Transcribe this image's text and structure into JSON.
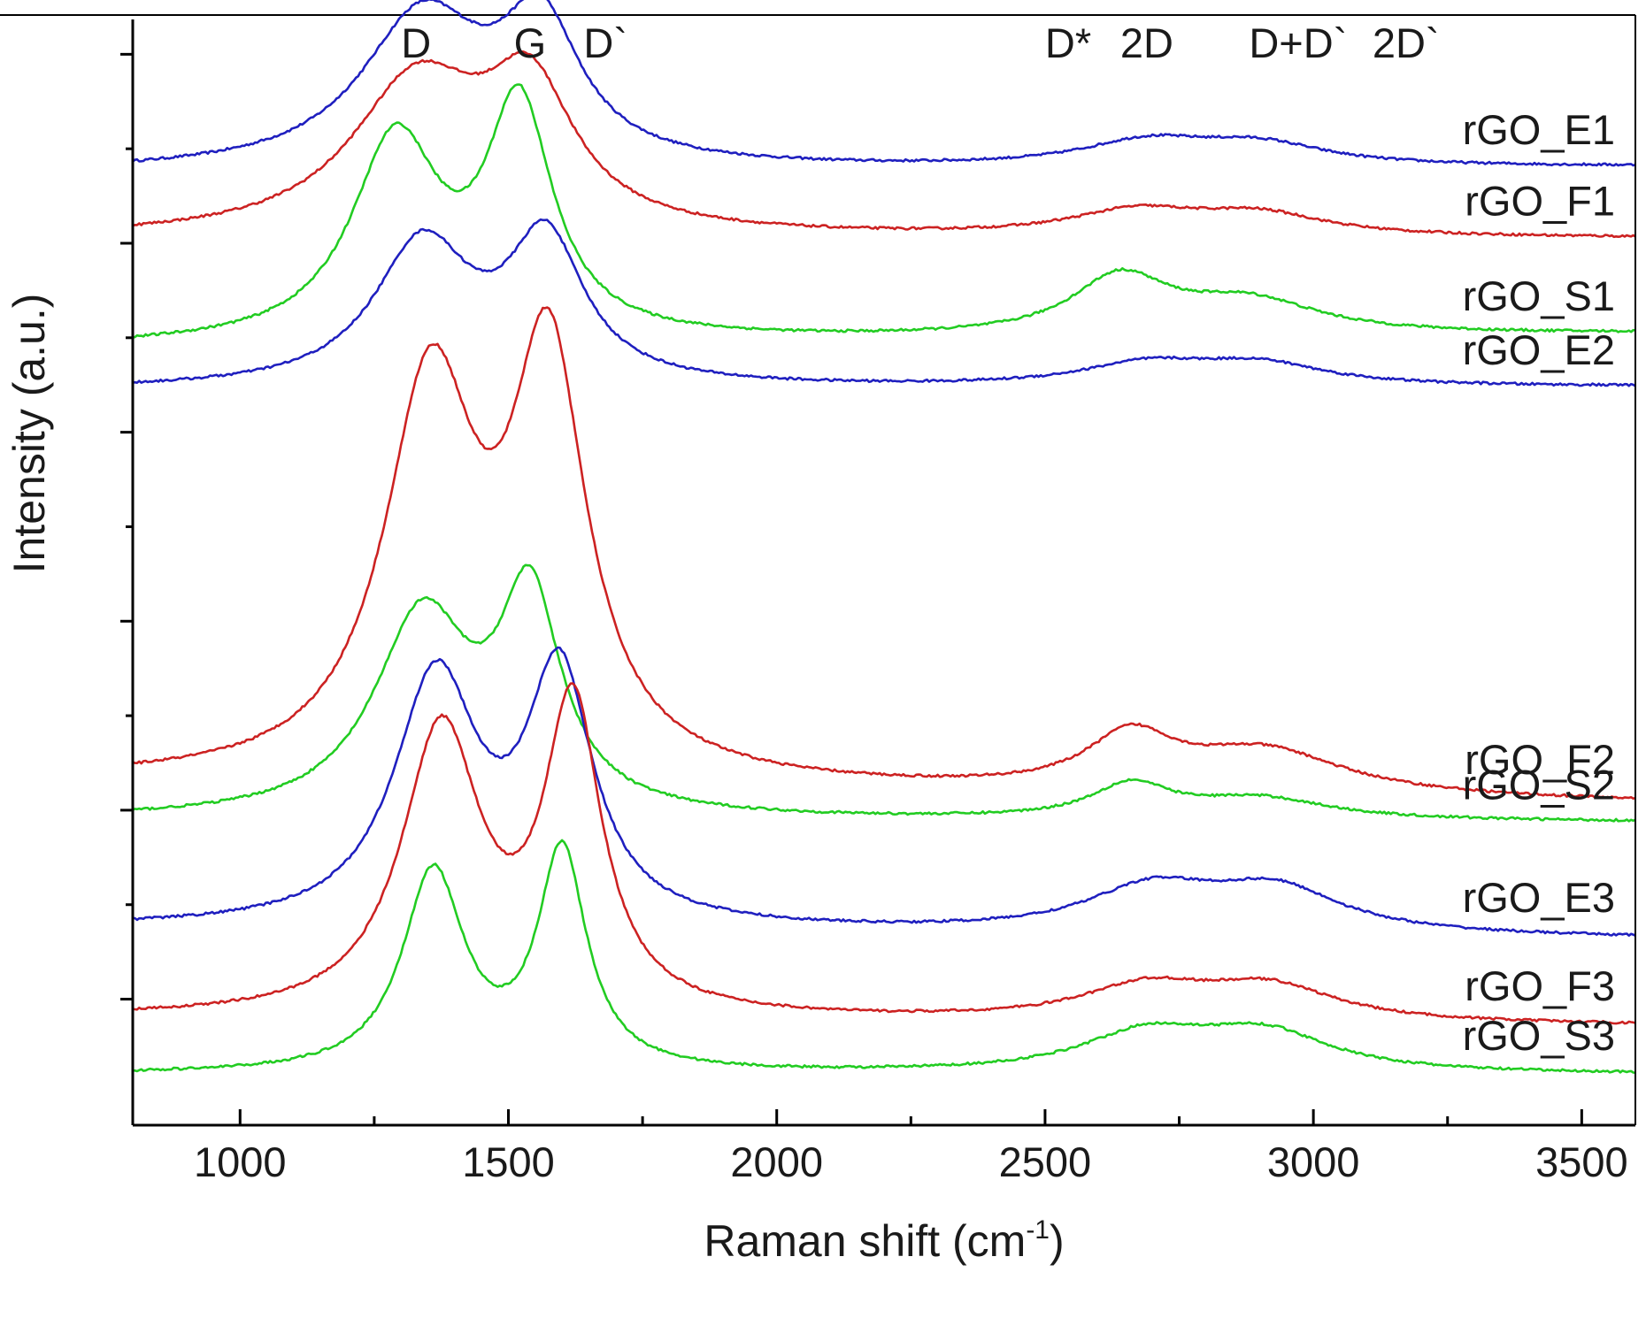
{
  "chart_data": {
    "type": "line",
    "title": "",
    "xlabel": "Raman shift (cm",
    "xlabel_sup": "-1",
    "xlabel_close": ")",
    "ylabel": "Intensity (a.u.)",
    "xlim": [
      800,
      3600
    ],
    "ylim": [
      0,
      11
    ],
    "grid": false,
    "x_ticks": [
      1000,
      1500,
      2000,
      2500,
      3000,
      3500
    ],
    "x_tick_labels": [
      "1000",
      "1500",
      "2000",
      "2500",
      "3000",
      "3500"
    ],
    "x_minor_ticks": [
      1250,
      1750,
      2250,
      2750,
      3250
    ],
    "y_ticks": [
      10.8,
      9.8,
      8.8,
      7.8,
      6.8,
      5.8,
      4.8,
      3.8,
      2.8,
      1.8,
      0.8
    ],
    "peak_labels": [
      {
        "text": "D",
        "x": 1300
      },
      {
        "text": "G",
        "x": 1510
      },
      {
        "text": "D`",
        "x": 1640
      },
      {
        "text": "D*",
        "x": 2500
      },
      {
        "text": "2D",
        "x": 2640
      },
      {
        "text": "D+D`",
        "x": 2880
      },
      {
        "text": "2D`",
        "x": 3110
      }
    ],
    "series": [
      {
        "name": "rGO_E1",
        "color": "#1f1fbf",
        "baseline": 9.55,
        "peaks": [
          [
            1340,
            1.6,
            140
          ],
          [
            1560,
            1.4,
            90
          ],
          [
            2690,
            0.25,
            150
          ],
          [
            2900,
            0.22,
            150
          ]
        ],
        "slope": 2e-05
      },
      {
        "name": "rGO_F1",
        "color": "#cc2222",
        "baseline": 8.85,
        "peaks": [
          [
            1330,
            1.6,
            150
          ],
          [
            1540,
            1.4,
            100
          ],
          [
            2670,
            0.25,
            150
          ],
          [
            2900,
            0.22,
            150
          ]
        ],
        "slope": 0.0
      },
      {
        "name": "rGO_S1",
        "color": "#22cc22",
        "baseline": 7.7,
        "peaks": [
          [
            1290,
            2.1,
            100
          ],
          [
            1520,
            2.4,
            75
          ],
          [
            2640,
            0.6,
            110
          ],
          [
            2880,
            0.35,
            160
          ]
        ],
        "slope": 5e-05
      },
      {
        "name": "rGO_E2",
        "color": "#1f1fbf",
        "baseline": 7.25,
        "peaks": [
          [
            1340,
            1.5,
            110
          ],
          [
            1570,
            1.5,
            85
          ],
          [
            2690,
            0.22,
            150
          ],
          [
            2900,
            0.22,
            150
          ]
        ],
        "slope": 1e-05
      },
      {
        "name": "rGO_F2",
        "color": "#cc2222",
        "baseline": 3.1,
        "peaks": [
          [
            1355,
            4.1,
            105
          ],
          [
            1575,
            4.3,
            85
          ],
          [
            2660,
            0.55,
            100
          ],
          [
            2910,
            0.45,
            180
          ]
        ],
        "slope": -8e-05
      },
      {
        "name": "rGO_S2",
        "color": "#22cc22",
        "baseline": 2.7,
        "peaks": [
          [
            1340,
            2.1,
            110
          ],
          [
            1540,
            2.2,
            70
          ],
          [
            2660,
            0.35,
            90
          ],
          [
            2900,
            0.22,
            160
          ]
        ],
        "slope": -1e-05
      },
      {
        "name": "rGO_E3",
        "color": "#1f1fbf",
        "baseline": 1.55,
        "peaks": [
          [
            1365,
            2.6,
            95
          ],
          [
            1595,
            2.6,
            75
          ],
          [
            2700,
            0.45,
            150
          ],
          [
            2930,
            0.45,
            150
          ]
        ],
        "slope": -4e-05
      },
      {
        "name": "rGO_F3",
        "color": "#cc2222",
        "baseline": 0.6,
        "peaks": [
          [
            1375,
            3.0,
            90
          ],
          [
            1620,
            3.2,
            65
          ],
          [
            2690,
            0.35,
            150
          ],
          [
            2920,
            0.35,
            150
          ]
        ],
        "slope": -3e-05
      },
      {
        "name": "rGO_S3",
        "color": "#22cc22",
        "baseline": 0.0,
        "peaks": [
          [
            1360,
            2.1,
            70
          ],
          [
            1600,
            2.3,
            55
          ],
          [
            2690,
            0.4,
            150
          ],
          [
            2910,
            0.4,
            150
          ]
        ],
        "slope": 0.0
      }
    ],
    "legend_placement": "right, beside each trace"
  }
}
